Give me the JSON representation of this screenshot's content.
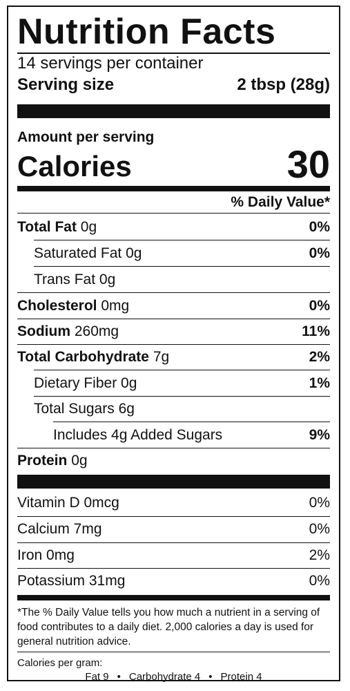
{
  "label": {
    "title": "Nutrition Facts",
    "servings_per_container": "14 servings per container",
    "serving_size_label": "Serving size",
    "serving_size_value": "2 tbsp (28g)",
    "amount_per_serving": "Amount per serving",
    "calories_label": "Calories",
    "calories_value": "30",
    "daily_value_header": "% Daily Value*",
    "nutrients": [
      {
        "name": "Total Fat",
        "amount": "0g",
        "dv": "0%"
      },
      {
        "name": "Saturated Fat",
        "amount": "0g",
        "dv": "0%"
      },
      {
        "name": "Trans Fat",
        "amount": "0g",
        "dv": ""
      },
      {
        "name": "Cholesterol",
        "amount": "0mg",
        "dv": "0%"
      },
      {
        "name": "Sodium",
        "amount": "260mg",
        "dv": "11%"
      },
      {
        "name": "Total Carbohydrate",
        "amount": "7g",
        "dv": "2%"
      },
      {
        "name": "Dietary Fiber",
        "amount": "0g",
        "dv": "1%"
      },
      {
        "name": "Total Sugars",
        "amount": "6g",
        "dv": ""
      },
      {
        "name": "Includes 4g Added Sugars",
        "amount": "",
        "dv": "9%"
      },
      {
        "name": "Protein",
        "amount": "0g",
        "dv": ""
      }
    ],
    "vitamins": [
      {
        "name": "Vitamin D 0mcg",
        "dv": "0%"
      },
      {
        "name": "Calcium 7mg",
        "dv": "0%"
      },
      {
        "name": "Iron 0mg",
        "dv": "2%"
      },
      {
        "name": "Potassium 31mg",
        "dv": "0%"
      }
    ],
    "footnote": "*The % Daily Value tells you how much a nutrient in a serving of food contributes to a daily diet. 2,000 calories a day is used for general nutrition advice.",
    "calories_per_gram_label": "Calories per gram:",
    "calories_per_gram": {
      "fat": "Fat 9",
      "carbohydrate": "Carbohydrate 4",
      "protein": "Protein 4",
      "separator": "•"
    }
  }
}
